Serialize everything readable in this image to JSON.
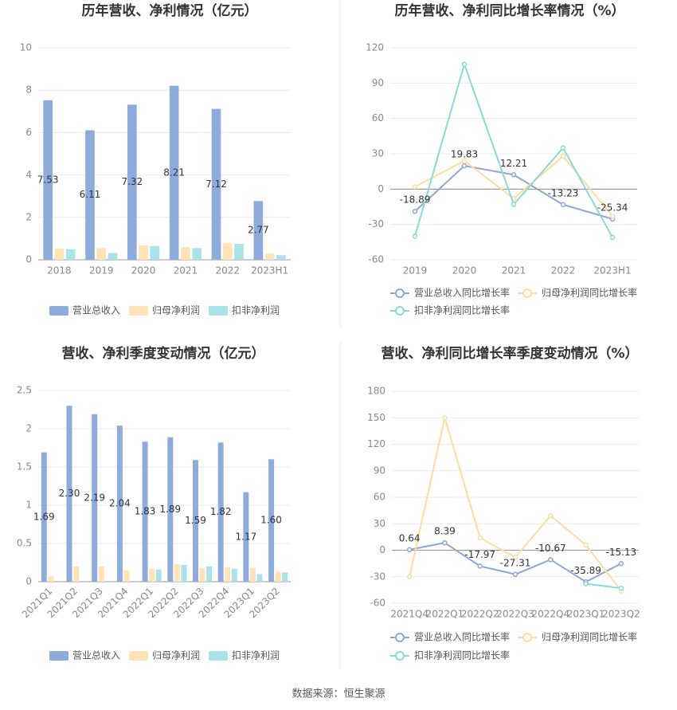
{
  "chart_data": [
    {
      "type": "bar",
      "title": "历年营收、净利情况（亿元）",
      "categories": [
        "2018",
        "2019",
        "2020",
        "2021",
        "2022",
        "2023H1"
      ],
      "series": [
        {
          "name": "营业总收入",
          "color": "#8eabdc",
          "values": [
            7.53,
            6.11,
            7.32,
            8.21,
            7.12,
            2.77
          ],
          "show_labels": true
        },
        {
          "name": "归母净利润",
          "color": "#fde3b6",
          "values": [
            0.52,
            0.55,
            0.68,
            0.6,
            0.78,
            0.3
          ]
        },
        {
          "name": "扣非净利润",
          "color": "#a9e3e7",
          "values": [
            0.5,
            0.32,
            0.65,
            0.55,
            0.75,
            0.22
          ]
        }
      ],
      "ylim": [
        0,
        10
      ],
      "yticks": [
        0,
        2,
        4,
        6,
        8,
        10
      ],
      "grid": true
    },
    {
      "type": "line",
      "title": "历年营收、净利同比增长率情况（%）",
      "categories": [
        "2019",
        "2020",
        "2021",
        "2022",
        "2023H1"
      ],
      "series": [
        {
          "name": "营业总收入同比增长率",
          "color": "#8da6d6",
          "values": [
            -18.89,
            19.83,
            12.21,
            -13.23,
            -25.34
          ],
          "show_labels": true
        },
        {
          "name": "归母净利润同比增长率",
          "color": "#fddca2",
          "values": [
            2,
            24,
            -8,
            28,
            -23
          ]
        },
        {
          "name": "扣非净利润同比增长率",
          "color": "#8ad8da",
          "values": [
            -40,
            106,
            -13,
            35,
            -41
          ]
        }
      ],
      "ylim": [
        -60,
        120
      ],
      "yticks": [
        -60,
        -30,
        0,
        30,
        60,
        90,
        120
      ],
      "grid": true
    },
    {
      "type": "bar",
      "title": "营收、净利季度变动情况（亿元）",
      "categories": [
        "2021Q1",
        "2021Q2",
        "2021Q3",
        "2021Q4",
        "2022Q1",
        "2022Q2",
        "2022Q3",
        "2022Q4",
        "2023Q1",
        "2023Q2"
      ],
      "series": [
        {
          "name": "营业总收入",
          "color": "#8eabdc",
          "values": [
            1.69,
            2.3,
            2.19,
            2.04,
            1.83,
            1.89,
            1.59,
            1.82,
            1.17,
            1.6
          ],
          "value_labels": [
            "1.69",
            "2.30",
            "2.19",
            "2.04",
            "1.83",
            "1.89",
            "1.59",
            "1.82",
            "1.17",
            "1.60"
          ],
          "show_labels": true
        },
        {
          "name": "归母净利润",
          "color": "#fde3b6",
          "values": [
            0.07,
            0.2,
            0.2,
            0.15,
            0.17,
            0.23,
            0.18,
            0.19,
            0.18,
            0.13
          ]
        },
        {
          "name": "扣非净利润",
          "color": "#a9e3e7",
          "values": [
            null,
            null,
            null,
            null,
            0.16,
            0.22,
            0.2,
            0.17,
            0.1,
            0.12
          ]
        }
      ],
      "ylim": [
        0,
        2.5
      ],
      "yticks": [
        0,
        0.5,
        1,
        1.5,
        2,
        2.5
      ],
      "grid": true,
      "rotate_labels": true
    },
    {
      "type": "line",
      "title": "营收、净利同比增长率季度变动情况（%）",
      "categories": [
        "2021Q4",
        "2022Q1",
        "2022Q2",
        "2022Q3",
        "2022Q4",
        "2023Q1",
        "2023Q2"
      ],
      "series": [
        {
          "name": "营业总收入同比增长率",
          "color": "#8da6d6",
          "values": [
            0.64,
            8.39,
            -17.97,
            -27.31,
            -10.67,
            -35.89,
            -15.13
          ],
          "show_labels": true
        },
        {
          "name": "归母净利润同比增长率",
          "color": "#fddca2",
          "values": [
            -30,
            150,
            14,
            -8,
            39,
            6,
            -46
          ]
        },
        {
          "name": "扣非净利润同比增长率",
          "color": "#8ad8da",
          "values": [
            null,
            null,
            null,
            null,
            null,
            -38,
            -43
          ]
        }
      ],
      "ylim": [
        -60,
        180
      ],
      "yticks": [
        -60,
        -30,
        0,
        30,
        60,
        90,
        120,
        150,
        180
      ],
      "grid": true
    }
  ],
  "source": "数据来源：恒生聚源"
}
